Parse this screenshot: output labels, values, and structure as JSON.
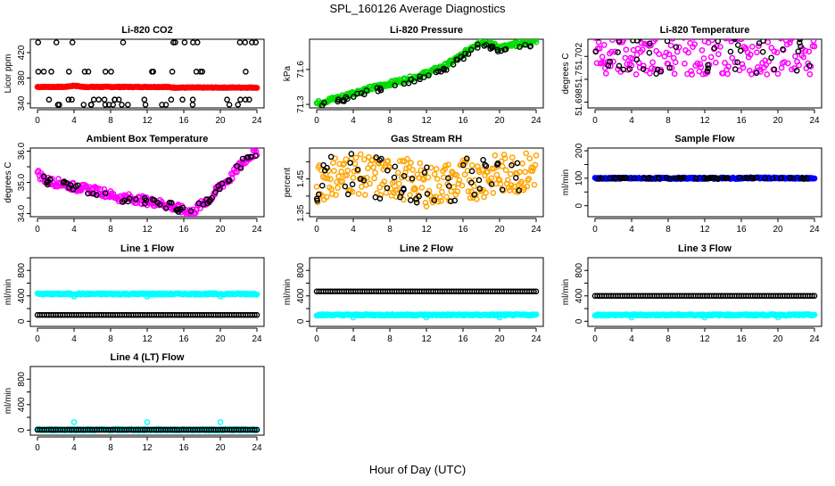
{
  "title": "SPL_160126  Average Diagnostics",
  "xlabel": "Hour of Day (UTC)",
  "chart_data": [
    {
      "type": "scatter",
      "title": "Li-820 CO2",
      "ylabel": "Licor ppm",
      "ylim": [
        333,
        441
      ],
      "yticks": [
        340,
        380,
        420
      ],
      "yticklabels": [
        "340",
        "380",
        "420"
      ],
      "xlim": [
        0,
        24
      ],
      "xticks": [
        0,
        4,
        8,
        12,
        16,
        20,
        24
      ],
      "series": [
        {
          "name": "average",
          "color": "#ff0000",
          "y": [
            366,
            366,
            366,
            366,
            368,
            366,
            366,
            366,
            366,
            366,
            366,
            366,
            366,
            366,
            366,
            365,
            365,
            365,
            365,
            365,
            365,
            365,
            365,
            365,
            365
          ]
        },
        {
          "name": "bounds",
          "color": "#000000",
          "levels": [
            338,
            346,
            390,
            436
          ]
        }
      ]
    },
    {
      "type": "scatter",
      "title": "Li-820 Pressure",
      "ylabel": "kPa",
      "ylim": [
        71.27,
        71.86
      ],
      "yticks": [
        71.3,
        71.6
      ],
      "yticklabels": [
        "71.3",
        "71.6"
      ],
      "xlim": [
        0,
        24
      ],
      "xticks": [
        0,
        4,
        8,
        12,
        16,
        20,
        24
      ],
      "series": [
        {
          "name": "average",
          "color": "#00dd00",
          "y": [
            71.31,
            71.33,
            71.35,
            71.37,
            71.4,
            71.42,
            71.44,
            71.46,
            71.48,
            71.5,
            71.52,
            71.54,
            71.57,
            71.6,
            71.63,
            71.68,
            71.73,
            71.8,
            71.84,
            71.82,
            71.79,
            71.8,
            71.82,
            71.83,
            71.85
          ]
        },
        {
          "name": "sample",
          "color": "#000000",
          "offset": -0.025
        }
      ]
    },
    {
      "type": "scatter",
      "title": "Li-820 Temperature",
      "ylabel": "degrees C",
      "ylim": [
        51.6975,
        51.7035
      ],
      "yticks": [
        51.698,
        51.7,
        51.702
      ],
      "yticklabels": [
        "51.698",
        "51.7",
        "51.702"
      ],
      "xlim": [
        0,
        24
      ],
      "xticks": [
        0,
        4,
        8,
        12,
        16,
        20,
        24
      ],
      "series": [
        {
          "name": "average",
          "color": "#ff00ff",
          "y": [
            51.7025,
            51.7025,
            51.7025,
            51.7025,
            51.7025,
            51.7025,
            51.7025,
            51.7025,
            51.7025,
            51.7025,
            51.7025,
            51.7025,
            51.7025,
            51.7025,
            51.7025,
            51.7025,
            51.7025,
            51.7025,
            51.7025,
            51.7025,
            51.7025,
            51.7025,
            51.7025,
            51.7025,
            51.7025
          ]
        },
        {
          "name": "sample",
          "color": "#000000",
          "offset": 0
        }
      ]
    },
    {
      "type": "scatter",
      "title": "Ambient Box Temperature",
      "ylabel": "degrees C",
      "ylim": [
        33.9,
        36.1
      ],
      "yticks": [
        34.0,
        34.5,
        35.0,
        35.5,
        36.0
      ],
      "yticklabels": [
        "34.0",
        "",
        "35.0",
        "",
        "36.0"
      ],
      "xlim": [
        0,
        24
      ],
      "xticks": [
        0,
        4,
        8,
        12,
        16,
        20,
        24
      ],
      "series": [
        {
          "name": "average",
          "color": "#ff00ff",
          "y": [
            35.3,
            35.05,
            35.0,
            34.95,
            34.85,
            34.8,
            34.75,
            34.7,
            34.6,
            34.5,
            34.5,
            34.45,
            34.4,
            34.35,
            34.3,
            34.2,
            34.1,
            34.05,
            34.3,
            34.5,
            34.9,
            35.1,
            35.5,
            35.8,
            36.0
          ]
        },
        {
          "name": "sample",
          "color": "#000000",
          "offset": 0
        }
      ]
    },
    {
      "type": "scatter",
      "title": "Gas Stream RH",
      "ylabel": "percent",
      "ylim": [
        1.34,
        1.54
      ],
      "yticks": [
        1.35,
        1.4,
        1.45,
        1.5
      ],
      "yticklabels": [
        "1.35",
        "",
        "1.45",
        ""
      ],
      "xlim": [
        0,
        24
      ],
      "xticks": [
        0,
        4,
        8,
        12,
        16,
        20,
        24
      ],
      "series": [
        {
          "name": "average",
          "color": "#ffa500",
          "y": [
            1.43,
            1.45,
            1.46,
            1.46,
            1.47,
            1.46,
            1.46,
            1.45,
            1.45,
            1.45,
            1.45,
            1.44,
            1.43,
            1.43,
            1.44,
            1.44,
            1.45,
            1.45,
            1.45,
            1.46,
            1.46,
            1.47,
            1.47,
            1.47,
            1.48
          ]
        },
        {
          "name": "sample",
          "color": "#000000",
          "offset": 0
        }
      ]
    },
    {
      "type": "scatter",
      "title": "Sample Flow",
      "ylabel": "ml/min",
      "ylim": [
        -40,
        210
      ],
      "yticks": [
        0,
        50,
        100,
        150,
        200
      ],
      "yticklabels": [
        "0",
        "",
        "100",
        "",
        "200"
      ],
      "xlim": [
        0,
        24
      ],
      "xticks": [
        0,
        4,
        8,
        12,
        16,
        20,
        24
      ],
      "series": [
        {
          "name": "average",
          "color": "#0000ff",
          "y": [
            100,
            100,
            100,
            100,
            100,
            100,
            100,
            100,
            100,
            100,
            100,
            100,
            100,
            100,
            100,
            100,
            100,
            101,
            101,
            101,
            100,
            100,
            100,
            100,
            100
          ]
        },
        {
          "name": "sample",
          "color": "#000000",
          "offset": 0
        }
      ]
    },
    {
      "type": "scatter",
      "title": "Line 1 Flow",
      "ylabel": "ml/min",
      "ylim": [
        -80,
        1000
      ],
      "yticks": [
        0,
        200,
        400,
        600,
        800
      ],
      "yticklabels": [
        "0",
        "",
        "400",
        "",
        "800"
      ],
      "xlim": [
        0,
        24
      ],
      "xticks": [
        0,
        4,
        8,
        12,
        16,
        20,
        24
      ],
      "series": [
        {
          "name": "line",
          "color": "#00ffff",
          "y": [
            430,
            430,
            430,
            430,
            430,
            430,
            430,
            430,
            430,
            430,
            430,
            430,
            430,
            430,
            430,
            430,
            430,
            430,
            430,
            430,
            430,
            430,
            430,
            430,
            430
          ]
        },
        {
          "name": "other",
          "color": "#000000",
          "y": [
            100,
            100,
            100,
            100,
            100,
            100,
            100,
            100,
            100,
            100,
            100,
            100,
            100,
            100,
            100,
            100,
            100,
            100,
            100,
            100,
            100,
            100,
            100,
            100,
            100
          ]
        }
      ]
    },
    {
      "type": "scatter",
      "title": "Line 2 Flow",
      "ylabel": "ml/min",
      "ylim": [
        -80,
        1000
      ],
      "yticks": [
        0,
        200,
        400,
        600,
        800
      ],
      "yticklabels": [
        "0",
        "",
        "400",
        "",
        "800"
      ],
      "xlim": [
        0,
        24
      ],
      "xticks": [
        0,
        4,
        8,
        12,
        16,
        20,
        24
      ],
      "series": [
        {
          "name": "line",
          "color": "#00ffff",
          "y": [
            100,
            100,
            100,
            100,
            100,
            100,
            100,
            100,
            100,
            100,
            100,
            100,
            100,
            100,
            100,
            100,
            100,
            100,
            100,
            100,
            100,
            100,
            100,
            100,
            100
          ]
        },
        {
          "name": "other",
          "color": "#000000",
          "y": [
            470,
            470,
            470,
            470,
            470,
            470,
            470,
            470,
            470,
            470,
            470,
            470,
            470,
            470,
            470,
            470,
            470,
            470,
            470,
            470,
            470,
            470,
            470,
            470,
            470
          ]
        }
      ]
    },
    {
      "type": "scatter",
      "title": "Line 3 Flow",
      "ylabel": "ml/min",
      "ylim": [
        -80,
        1000
      ],
      "yticks": [
        0,
        200,
        400,
        600,
        800
      ],
      "yticklabels": [
        "0",
        "",
        "400",
        "",
        "800"
      ],
      "xlim": [
        0,
        24
      ],
      "xticks": [
        0,
        4,
        8,
        12,
        16,
        20,
        24
      ],
      "series": [
        {
          "name": "line",
          "color": "#00ffff",
          "y": [
            100,
            100,
            100,
            100,
            100,
            100,
            100,
            100,
            100,
            100,
            100,
            100,
            100,
            100,
            100,
            100,
            100,
            100,
            100,
            100,
            100,
            100,
            100,
            100,
            100
          ]
        },
        {
          "name": "other",
          "color": "#000000",
          "y": [
            400,
            400,
            400,
            400,
            400,
            400,
            400,
            400,
            400,
            400,
            400,
            400,
            400,
            400,
            400,
            400,
            400,
            400,
            400,
            400,
            400,
            400,
            400,
            400,
            400
          ]
        }
      ]
    },
    {
      "type": "scatter",
      "title": "Line 4 (LT) Flow",
      "ylabel": "ml/min",
      "ylim": [
        -80,
        1000
      ],
      "yticks": [
        0,
        200,
        400,
        600,
        800
      ],
      "yticklabels": [
        "0",
        "",
        "400",
        "",
        "800"
      ],
      "xlim": [
        0,
        24
      ],
      "xticks": [
        0,
        4,
        8,
        12,
        16,
        20,
        24
      ],
      "series": [
        {
          "name": "line",
          "color": "#00ffff",
          "y": [
            5,
            5,
            5,
            5,
            5,
            5,
            5,
            5,
            5,
            5,
            5,
            5,
            5,
            5,
            5,
            5,
            5,
            5,
            5,
            5,
            5,
            5,
            5,
            5,
            5
          ]
        },
        {
          "name": "other",
          "color": "#000000",
          "y": [
            5,
            5,
            5,
            5,
            5,
            5,
            5,
            5,
            5,
            5,
            5,
            5,
            5,
            5,
            5,
            5,
            5,
            5,
            5,
            5,
            5,
            5,
            5,
            5,
            5
          ]
        }
      ]
    }
  ]
}
